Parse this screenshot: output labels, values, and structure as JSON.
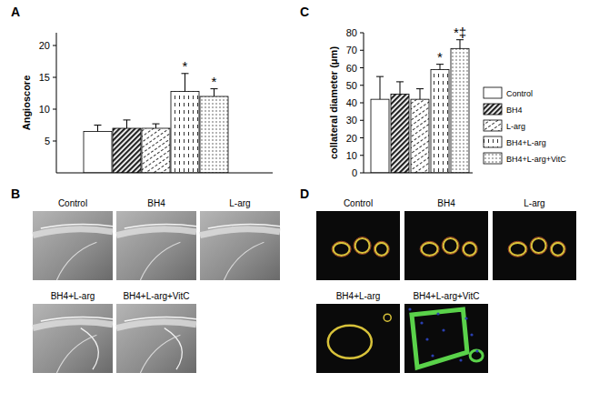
{
  "chart_data": [
    {
      "type": "bar",
      "label": "A",
      "y_label": "Angioscore",
      "categories": [
        null,
        null,
        null,
        null,
        null
      ],
      "values": [
        6.5,
        7,
        7,
        12.8,
        12
      ],
      "errors": [
        1,
        1.3,
        0.7,
        2.8,
        1.2
      ],
      "ylim": [
        0,
        22
      ],
      "yticks": [
        5,
        10,
        15,
        20
      ],
      "tick_labels": "y",
      "annotations": [
        {
          "at": 3,
          "text": "*"
        },
        {
          "at": 4,
          "text": "*"
        }
      ]
    },
    {
      "type": "bar",
      "label": "C",
      "y_label": "collateral diameter (μm)",
      "categories": [
        "Control",
        "BH4",
        "L-arg",
        "BH4+L-arg",
        "BH4+L-arg+VitC"
      ],
      "values": [
        42,
        45,
        42,
        59,
        71
      ],
      "errors": [
        13,
        7,
        6,
        3,
        5
      ],
      "ylim": [
        0,
        80
      ],
      "yticks": [
        0,
        10,
        20,
        30,
        40,
        50,
        60,
        70,
        80
      ],
      "tick_labels": "y",
      "legend": "right",
      "annotations": [
        {
          "at": 3,
          "text": "*"
        },
        {
          "at": 4,
          "text": "*‡"
        }
      ]
    }
  ],
  "image_panels": [
    {
      "label": "B",
      "captions": [
        "Control",
        "BH4",
        "L-arg",
        "BH4+L-arg",
        "BH4+L-arg+VitC"
      ]
    },
    {
      "label": "D",
      "captions": [
        "Control",
        "BH4",
        "L-arg",
        "BH4+L-arg",
        "BH4+L-arg+VitC"
      ]
    }
  ]
}
